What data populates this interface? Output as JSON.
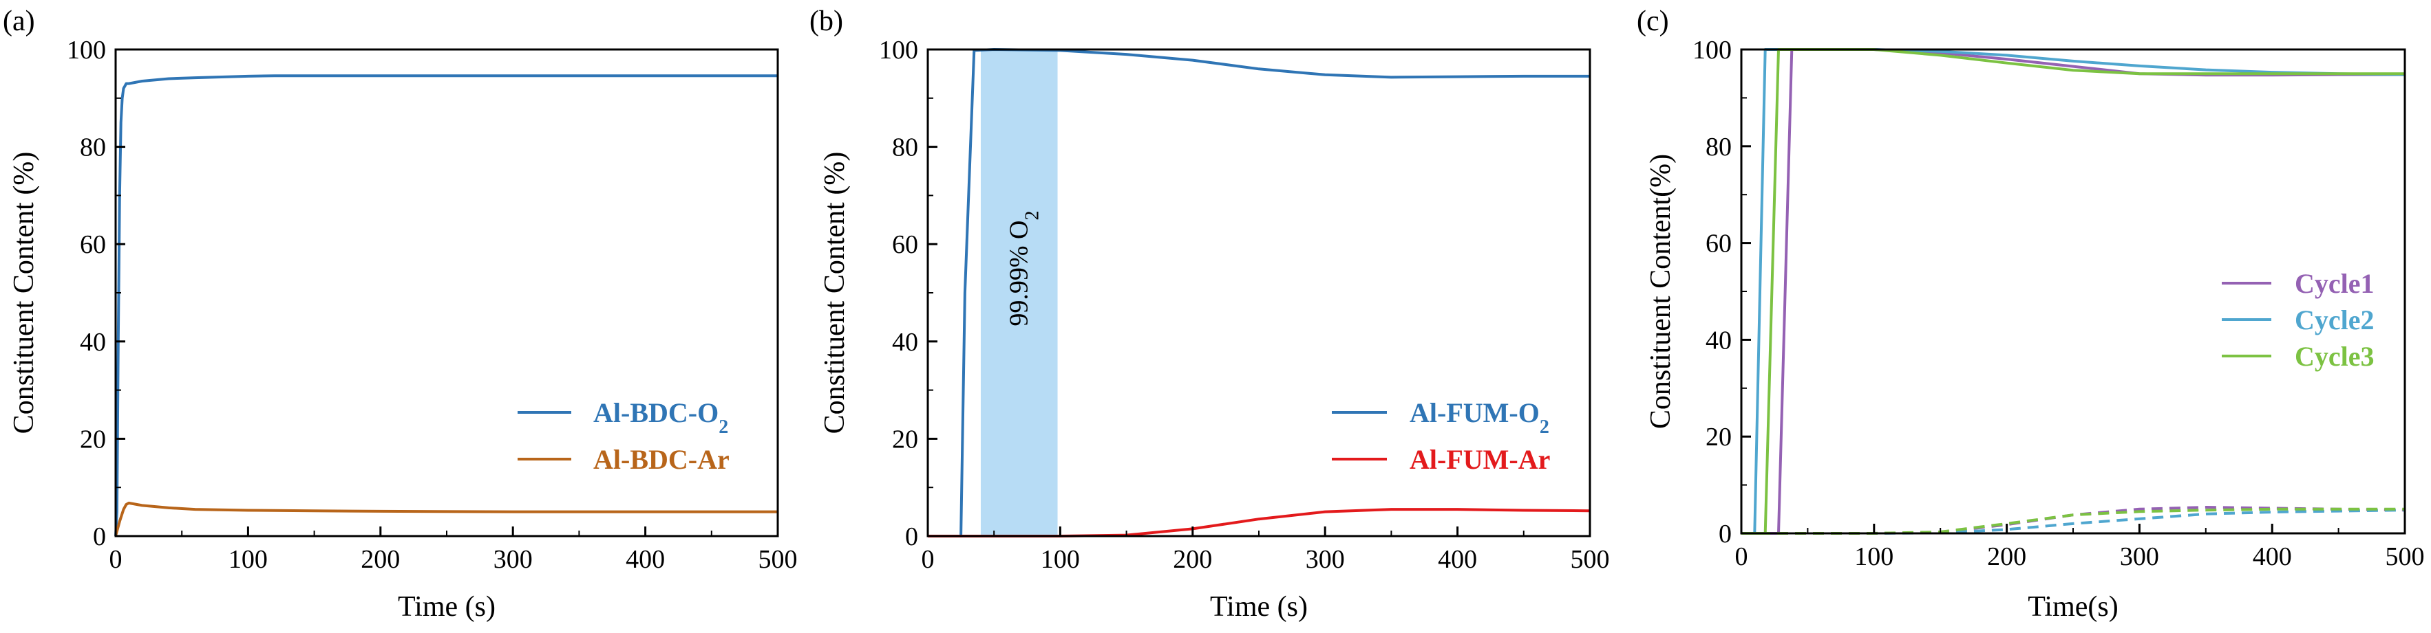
{
  "colors": {
    "blue": "#2f75b5",
    "orange": "#b8651a",
    "red": "#e31a1c",
    "purple": "#9461b3",
    "lightblue": "#4fa6cf",
    "green": "#7cc242",
    "shade": "#b7dcf5"
  },
  "chart_data": [
    {
      "type": "line",
      "panel_label": "(a)",
      "xlabel": "Time (s)",
      "ylabel": "Constituent Content (%)",
      "xlim": [
        0,
        500
      ],
      "ylim": [
        0,
        100
      ],
      "xticks": [
        0,
        100,
        200,
        300,
        400,
        500
      ],
      "yticks": [
        0,
        20,
        40,
        60,
        80,
        100
      ],
      "legend_position": "bottom-right",
      "series": [
        {
          "name": "Al-BDC-O2",
          "legend_base": "Al-BDC-O",
          "legend_sub": "2",
          "color": "#2f75b5",
          "dash": false,
          "x": [
            0,
            1,
            2,
            3,
            4,
            5,
            6,
            7,
            8,
            9,
            10,
            20,
            40,
            60,
            100,
            120,
            200,
            300,
            400,
            500
          ],
          "y": [
            0,
            5,
            40,
            70,
            85,
            90,
            92,
            92.5,
            93,
            93,
            93,
            93.5,
            94,
            94.2,
            94.5,
            94.6,
            94.6,
            94.6,
            94.6,
            94.6
          ]
        },
        {
          "name": "Al-BDC-Ar",
          "legend_base": "Al-BDC-Ar",
          "legend_sub": "",
          "color": "#b8651a",
          "dash": false,
          "x": [
            0,
            3,
            6,
            8,
            10,
            20,
            40,
            60,
            100,
            150,
            200,
            300,
            400,
            500
          ],
          "y": [
            0,
            3,
            5.5,
            6.5,
            6.8,
            6.3,
            5.8,
            5.5,
            5.3,
            5.2,
            5.1,
            5.0,
            5.0,
            5.0
          ]
        }
      ]
    },
    {
      "type": "line",
      "panel_label": "(b)",
      "xlabel": "Time (s)",
      "ylabel": "Constituent Content (%)",
      "xlim": [
        0,
        500
      ],
      "ylim": [
        0,
        100
      ],
      "xticks": [
        0,
        100,
        200,
        300,
        400,
        500
      ],
      "yticks": [
        0,
        20,
        40,
        60,
        80,
        100
      ],
      "legend_position": "bottom-right",
      "shaded_region": {
        "x0": 40,
        "x1": 98,
        "y0": 0,
        "y1": 100
      },
      "annotation": {
        "base": "99.99% O",
        "sub": "2"
      },
      "series": [
        {
          "name": "Al-FUM-O2",
          "legend_base": "Al-FUM-O",
          "legend_sub": "2",
          "color": "#2f75b5",
          "dash": false,
          "x": [
            0,
            25,
            28,
            35,
            50,
            100,
            150,
            200,
            250,
            300,
            350,
            400,
            450,
            500
          ],
          "y": [
            0,
            0,
            50,
            99.8,
            100,
            99.8,
            99,
            97.8,
            96,
            94.8,
            94.3,
            94.4,
            94.5,
            94.5
          ]
        },
        {
          "name": "Al-FUM-Ar",
          "legend_base": "Al-FUM-Ar",
          "legend_sub": "",
          "color": "#e31a1c",
          "dash": false,
          "x": [
            0,
            100,
            150,
            200,
            250,
            300,
            350,
            400,
            450,
            500
          ],
          "y": [
            0,
            0,
            0.2,
            1.5,
            3.5,
            5.0,
            5.5,
            5.5,
            5.3,
            5.2
          ]
        }
      ]
    },
    {
      "type": "line",
      "panel_label": "(c)",
      "xlabel": "Time(s)",
      "ylabel": "Constituent Content(%)",
      "xlim": [
        0,
        500
      ],
      "ylim": [
        0,
        100
      ],
      "xticks": [
        0,
        100,
        200,
        300,
        400,
        500
      ],
      "yticks": [
        0,
        20,
        40,
        60,
        80,
        100
      ],
      "legend_position": "right",
      "series": [
        {
          "name": "Cycle1",
          "legend_base": "Cycle1",
          "legend_sub": "",
          "color": "#9461b3",
          "dash": false,
          "x": [
            0,
            28,
            38,
            60,
            100,
            150,
            200,
            250,
            300,
            350,
            400,
            450,
            500
          ],
          "y": [
            0,
            0,
            100,
            100,
            100,
            99.3,
            98,
            96.5,
            95,
            94.7,
            94.7,
            94.8,
            94.8
          ]
        },
        {
          "name": "Cycle2",
          "legend_base": "Cycle2",
          "legend_sub": "",
          "color": "#4fa6cf",
          "dash": false,
          "x": [
            0,
            10,
            18,
            40,
            100,
            150,
            200,
            250,
            300,
            350,
            400,
            450,
            500
          ],
          "y": [
            0,
            0,
            100,
            100,
            100,
            99.6,
            98.8,
            97.6,
            96.6,
            95.8,
            95.3,
            95.0,
            94.8
          ]
        },
        {
          "name": "Cycle3",
          "legend_base": "Cycle3",
          "legend_sub": "",
          "color": "#7cc242",
          "dash": false,
          "x": [
            0,
            18,
            28,
            50,
            100,
            150,
            200,
            250,
            300,
            350,
            400,
            450,
            500
          ],
          "y": [
            0,
            0,
            100,
            100,
            100,
            98.8,
            97.2,
            95.7,
            95.0,
            95.0,
            95.0,
            95.0,
            95.0
          ]
        },
        {
          "name": "",
          "color": "#9461b3",
          "dash": true,
          "x": [
            0,
            100,
            150,
            200,
            250,
            300,
            350,
            400,
            450,
            500
          ],
          "y": [
            0,
            0,
            0.2,
            1.8,
            3.8,
            5.0,
            5.4,
            5.2,
            5.0,
            4.8
          ]
        },
        {
          "name": "",
          "color": "#4fa6cf",
          "dash": true,
          "x": [
            0,
            100,
            150,
            200,
            250,
            300,
            350,
            400,
            450,
            500
          ],
          "y": [
            0,
            0,
            0.1,
            0.8,
            2.0,
            3.0,
            4.0,
            4.4,
            4.6,
            4.8
          ]
        },
        {
          "name": "",
          "color": "#7cc242",
          "dash": true,
          "x": [
            0,
            100,
            150,
            200,
            250,
            300,
            350,
            400,
            450,
            500
          ],
          "y": [
            0,
            0,
            0.3,
            2.0,
            3.8,
            4.5,
            4.8,
            5.0,
            5.0,
            5.0
          ]
        }
      ]
    }
  ]
}
